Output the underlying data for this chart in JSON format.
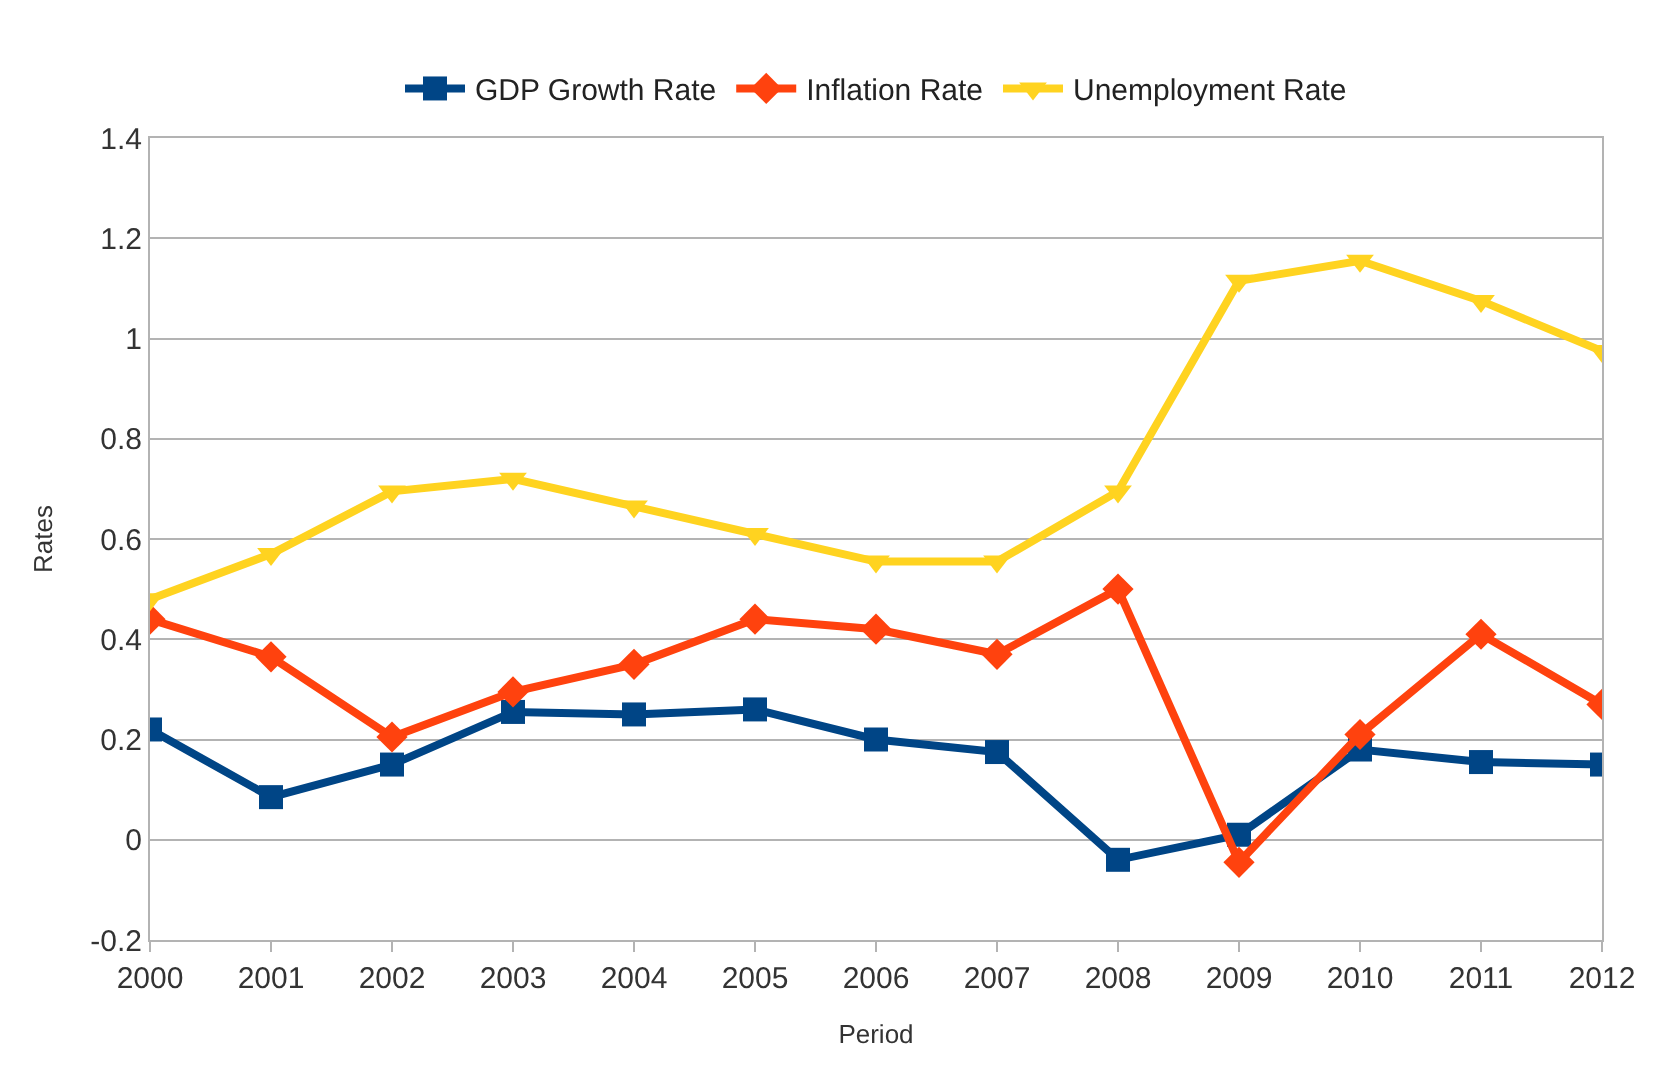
{
  "chart_data": {
    "type": "line",
    "xlabel": "Period",
    "ylabel": "Rates",
    "x": [
      2000,
      2001,
      2002,
      2003,
      2004,
      2005,
      2006,
      2007,
      2008,
      2009,
      2010,
      2011,
      2012
    ],
    "xlim": [
      2000,
      2012
    ],
    "xticks": [
      2000,
      2001,
      2002,
      2003,
      2004,
      2005,
      2006,
      2007,
      2008,
      2009,
      2010,
      2011,
      2012
    ],
    "ylim": [
      -0.2,
      1.4
    ],
    "yticks": [
      -0.2,
      0,
      0.2,
      0.4,
      0.6,
      0.8,
      1,
      1.2,
      1.4
    ],
    "grid": "y",
    "legend": "top",
    "line_style": "solid",
    "series": [
      {
        "name": "GDP Growth Rate",
        "color": "#004586",
        "marker": "square",
        "values": [
          0.22,
          0.085,
          0.15,
          0.255,
          0.25,
          0.26,
          0.2,
          0.175,
          -0.04,
          0.01,
          0.18,
          0.155,
          0.15
        ]
      },
      {
        "name": "Inflation Rate",
        "color": "#ff420e",
        "marker": "diamond",
        "values": [
          0.44,
          0.365,
          0.205,
          0.295,
          0.35,
          0.44,
          0.42,
          0.37,
          0.5,
          -0.045,
          0.21,
          0.41,
          0.27
        ]
      },
      {
        "name": "Unemployment Rate",
        "color": "#ffd320",
        "marker": "triangle",
        "values": [
          0.48,
          0.57,
          0.695,
          0.72,
          0.665,
          0.61,
          0.555,
          0.555,
          0.695,
          1.115,
          1.155,
          1.075,
          0.975
        ]
      }
    ]
  }
}
